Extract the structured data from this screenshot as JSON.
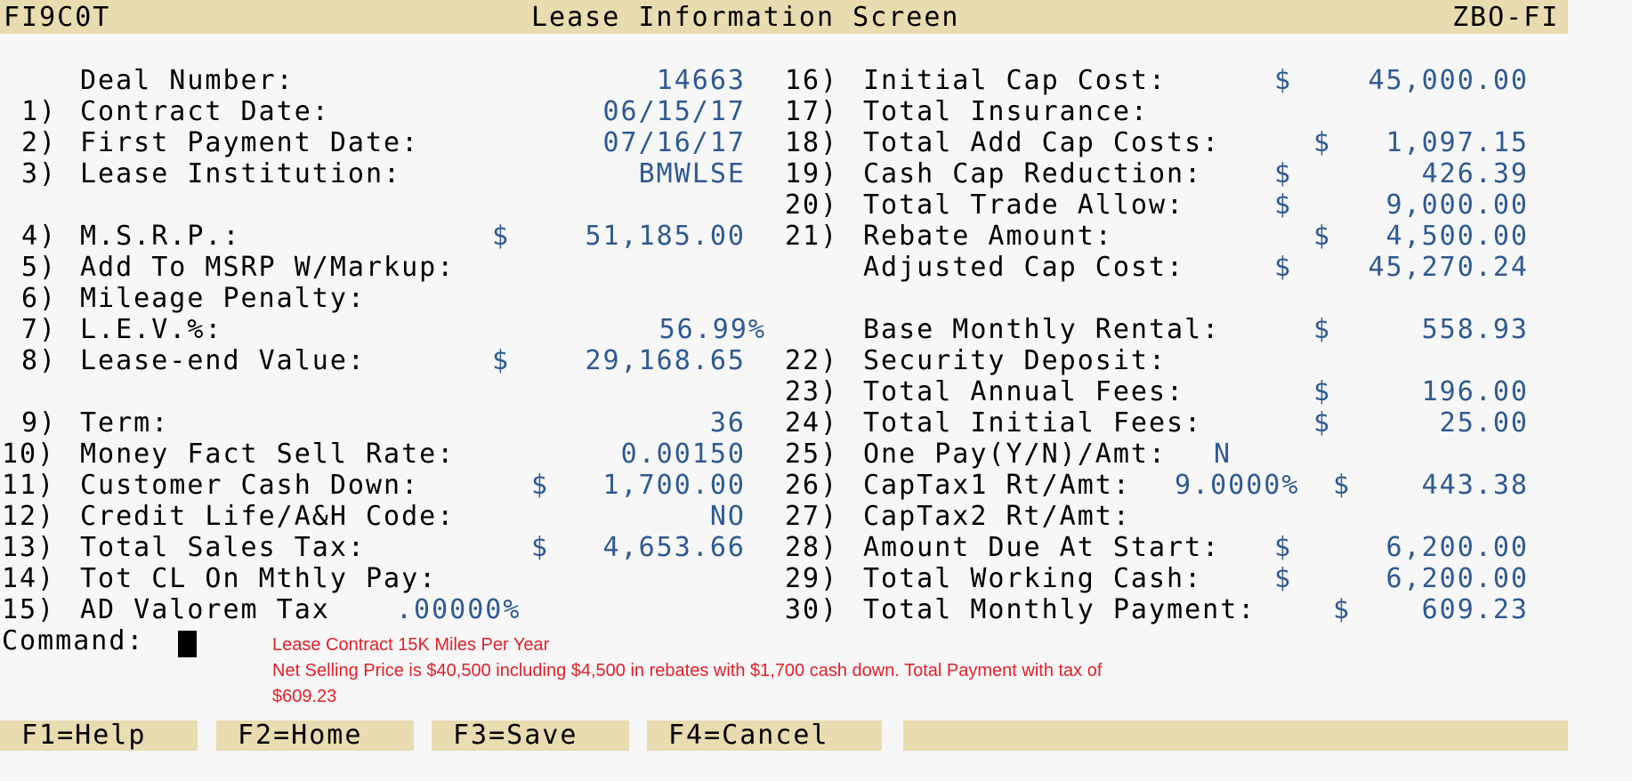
{
  "header": {
    "program_id": "FI9C0T",
    "title": "Lease Information Screen",
    "system_id": "ZBO-FI"
  },
  "left_fields": [
    {
      "num": "",
      "label": "Deal Number:",
      "currency": "",
      "value": "14663"
    },
    {
      "num": "1)",
      "label": "Contract Date:",
      "currency": "",
      "value": "06/15/17"
    },
    {
      "num": "2)",
      "label": "First Payment Date:",
      "currency": "",
      "value": "07/16/17"
    },
    {
      "num": "3)",
      "label": "Lease Institution:",
      "currency": "",
      "value": "BMWLSE"
    },
    {
      "num": "4)",
      "label": "M.S.R.P.:",
      "currency": "$",
      "value": "51,185.00"
    },
    {
      "num": "5)",
      "label": "Add To MSRP W/Markup:",
      "currency": "",
      "value": ""
    },
    {
      "num": "6)",
      "label": "Mileage Penalty:",
      "currency": "",
      "value": ""
    },
    {
      "num": "7)",
      "label": "L.E.V.%:",
      "currency": "",
      "value": "56.99%"
    },
    {
      "num": "8)",
      "label": "Lease-end Value:",
      "currency": "$",
      "value": "29,168.65"
    },
    {
      "num": "9)",
      "label": "Term:",
      "currency": "",
      "value": "36"
    },
    {
      "num": "10)",
      "label": "Money Fact Sell Rate:",
      "currency": "",
      "value": "0.00150"
    },
    {
      "num": "11)",
      "label": "Customer Cash Down:",
      "currency": "$",
      "value": "1,700.00"
    },
    {
      "num": "12)",
      "label": "Credit Life/A&H Code:",
      "currency": "",
      "value": "NO"
    },
    {
      "num": "13)",
      "label": "Total Sales Tax:",
      "currency": "$",
      "value": "4,653.66"
    },
    {
      "num": "14)",
      "label": "Tot CL On Mthly Pay:",
      "currency": "",
      "value": ""
    },
    {
      "num": "15)",
      "label": "AD Valorem Tax",
      "currency": "",
      "value": ".00000%"
    }
  ],
  "right_fields": [
    {
      "num": "16)",
      "label": "Initial Cap Cost:",
      "currency": "$",
      "value": "45,000.00"
    },
    {
      "num": "17)",
      "label": "Total Insurance:",
      "currency": "",
      "value": ""
    },
    {
      "num": "18)",
      "label": "Total Add Cap Costs:",
      "currency": "$",
      "value": "1,097.15"
    },
    {
      "num": "19)",
      "label": "Cash Cap Reduction:",
      "currency": "$",
      "value": "426.39"
    },
    {
      "num": "20)",
      "label": "Total Trade Allow:",
      "currency": "$",
      "value": "9,000.00"
    },
    {
      "num": "21)",
      "label": "Rebate Amount:",
      "currency": "$",
      "value": "4,500.00"
    },
    {
      "num": "",
      "label": "Adjusted Cap Cost:",
      "currency": "$",
      "value": "45,270.24"
    },
    {
      "num": "",
      "label": "Base Monthly Rental:",
      "currency": "$",
      "value": "558.93"
    },
    {
      "num": "22)",
      "label": "Security Deposit:",
      "currency": "",
      "value": ""
    },
    {
      "num": "23)",
      "label": "Total Annual Fees:",
      "currency": "$",
      "value": "196.00"
    },
    {
      "num": "24)",
      "label": "Total Initial Fees:",
      "currency": "$",
      "value": "25.00"
    },
    {
      "num": "25)",
      "label": "One Pay(Y/N)/Amt:",
      "currency": "",
      "value": "N"
    },
    {
      "num": "26)",
      "label": "CapTax1 Rt/Amt:",
      "rate": "9.0000%",
      "currency": "$",
      "value": "443.38"
    },
    {
      "num": "27)",
      "label": "CapTax2 Rt/Amt:",
      "currency": "",
      "value": ""
    },
    {
      "num": "28)",
      "label": "Amount Due At Start:",
      "currency": "$",
      "value": "6,200.00"
    },
    {
      "num": "29)",
      "label": "Total Working Cash:",
      "currency": "$",
      "value": "6,200.00"
    },
    {
      "num": "30)",
      "label": "Total Monthly Payment:",
      "currency": "$",
      "value": "609.23"
    }
  ],
  "command": {
    "label": "Command:"
  },
  "annotation": {
    "line1": "Lease Contract 15K Miles Per Year",
    "line2": "Net Selling Price is $40,500 including $4,500 in rebates with $1,700 cash down. Total Payment with tax of",
    "line3": "$609.23"
  },
  "function_keys": [
    "F1=Help",
    "F2=Home",
    "F3=Save",
    "F4=Cancel"
  ],
  "colors": {
    "header_bg": "#e8dcb0",
    "value_text": "#2e5a92",
    "annotation_text": "#e0202a"
  }
}
